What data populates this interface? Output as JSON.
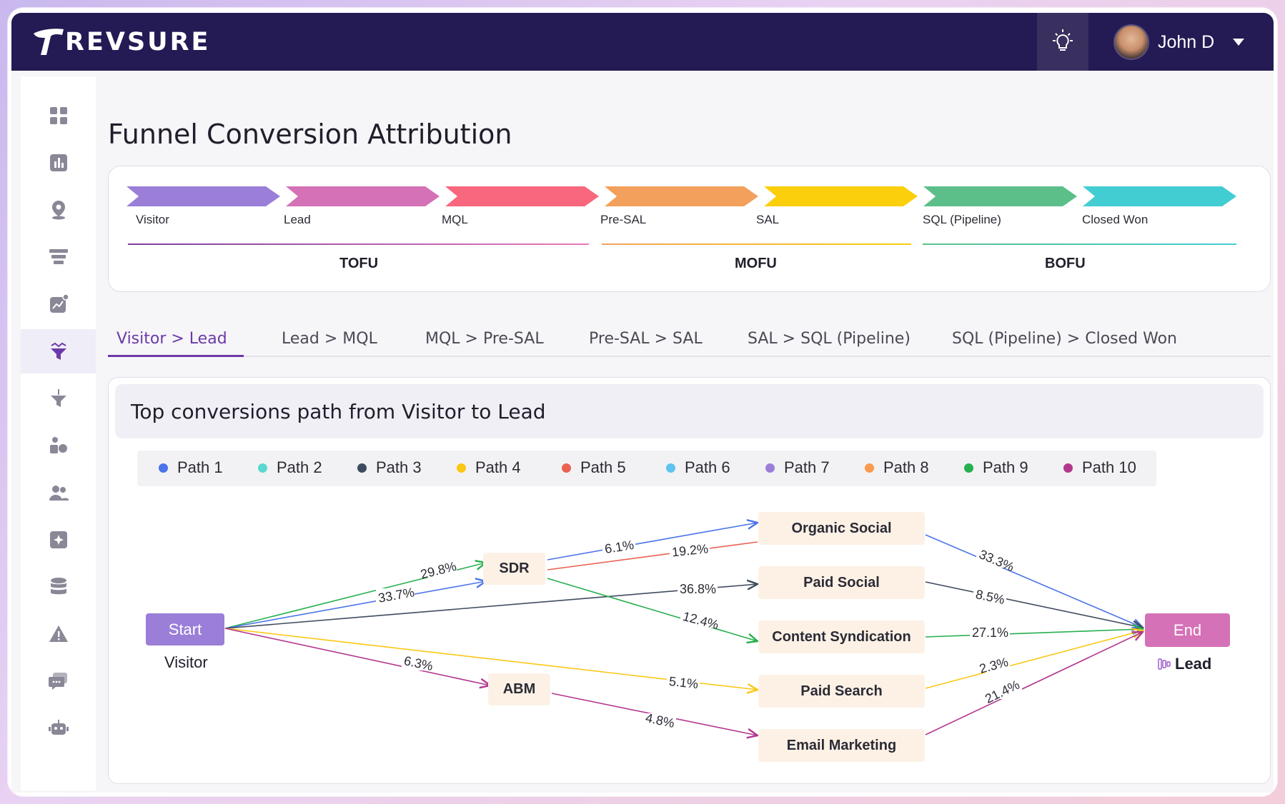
{
  "app": {
    "brand": "REVSURE",
    "user_name": "John D"
  },
  "sidebar": {
    "items": [
      {
        "icon": "dashboard-grid-icon"
      },
      {
        "icon": "bar-chart-icon"
      },
      {
        "icon": "location-pin-icon"
      },
      {
        "icon": "funnel-stack-icon"
      },
      {
        "icon": "trend-chart-icon"
      },
      {
        "icon": "funnel-conversion-icon",
        "active": true
      },
      {
        "icon": "funnel-filter-icon"
      },
      {
        "icon": "shapes-icon"
      },
      {
        "icon": "users-icon"
      },
      {
        "icon": "sparkle-icon"
      },
      {
        "icon": "database-icon"
      },
      {
        "icon": "alert-icon"
      },
      {
        "icon": "chat-icon"
      },
      {
        "icon": "robot-icon"
      }
    ]
  },
  "page": {
    "title": "Funnel Conversion Attribution"
  },
  "funnel": {
    "stages": [
      {
        "label": "Visitor",
        "color": "#9a7ed8"
      },
      {
        "label": "Lead",
        "color": "#d571b7"
      },
      {
        "label": "MQL",
        "color": "#f8677d"
      },
      {
        "label": "Pre-SAL",
        "color": "#f2a05c"
      },
      {
        "label": "SAL",
        "color": "#fbcf0b"
      },
      {
        "label": "SQL (Pipeline)",
        "color": "#5cbf8a"
      },
      {
        "label": "Closed Won",
        "color": "#42cdd3"
      }
    ],
    "groups": [
      {
        "label": "TOFU",
        "color_from": "#7a3fa0",
        "color_to": "#e97ab8"
      },
      {
        "label": "MOFU",
        "color_from": "#f2a05c",
        "color_to": "#fbcf0b"
      },
      {
        "label": "BOFU",
        "color_from": "#5cbf8a",
        "color_to": "#42cdd3"
      }
    ]
  },
  "tabs": [
    {
      "label": "Visitor > Lead",
      "active": true
    },
    {
      "label": "Lead > MQL"
    },
    {
      "label": "MQL > Pre-SAL"
    },
    {
      "label": "Pre-SAL > SAL"
    },
    {
      "label": "SAL > SQL (Pipeline)"
    },
    {
      "label": "SQL (Pipeline) > Closed Won"
    }
  ],
  "sankey": {
    "title": "Top conversions path from Visitor to Lead",
    "legend": [
      {
        "label": "Path 1",
        "color": "#4b74e8"
      },
      {
        "label": "Path 2",
        "color": "#5ad8d0"
      },
      {
        "label": "Path 3",
        "color": "#3f4b5e"
      },
      {
        "label": "Path 4",
        "color": "#fbc715"
      },
      {
        "label": "Path 5",
        "color": "#ea6151"
      },
      {
        "label": "Path 6",
        "color": "#5ec3ef"
      },
      {
        "label": "Path 7",
        "color": "#9a7ed8"
      },
      {
        "label": "Path 8",
        "color": "#f99a4d"
      },
      {
        "label": "Path 9",
        "color": "#27b04f"
      },
      {
        "label": "Path 10",
        "color": "#b3378f"
      }
    ],
    "nodes": {
      "start": "Start",
      "start_caption": "Visitor",
      "end": "End",
      "end_caption": "Lead",
      "sdr": "SDR",
      "abm": "ABM",
      "organic_social": "Organic Social",
      "paid_social": "Paid Social",
      "content_syndication": "Content Syndication",
      "paid_search": "Paid Search",
      "email_marketing": "Email Marketing"
    },
    "edge_labels": {
      "start_sdr_green": "29.8%",
      "start_sdr_blue": "33.7%",
      "start_paid_social": "36.8%",
      "start_abm": "6.3%",
      "start_paid_search": "5.1%",
      "sdr_organic_blue": "6.1%",
      "sdr_organic_red": "19.2%",
      "sdr_content": "12.4%",
      "abm_email": "4.8%",
      "organic_end": "33.3%",
      "paid_social_end": "8.5%",
      "content_end": "27.1%",
      "paid_search_end": "2.3%",
      "email_end": "21.4%"
    }
  }
}
